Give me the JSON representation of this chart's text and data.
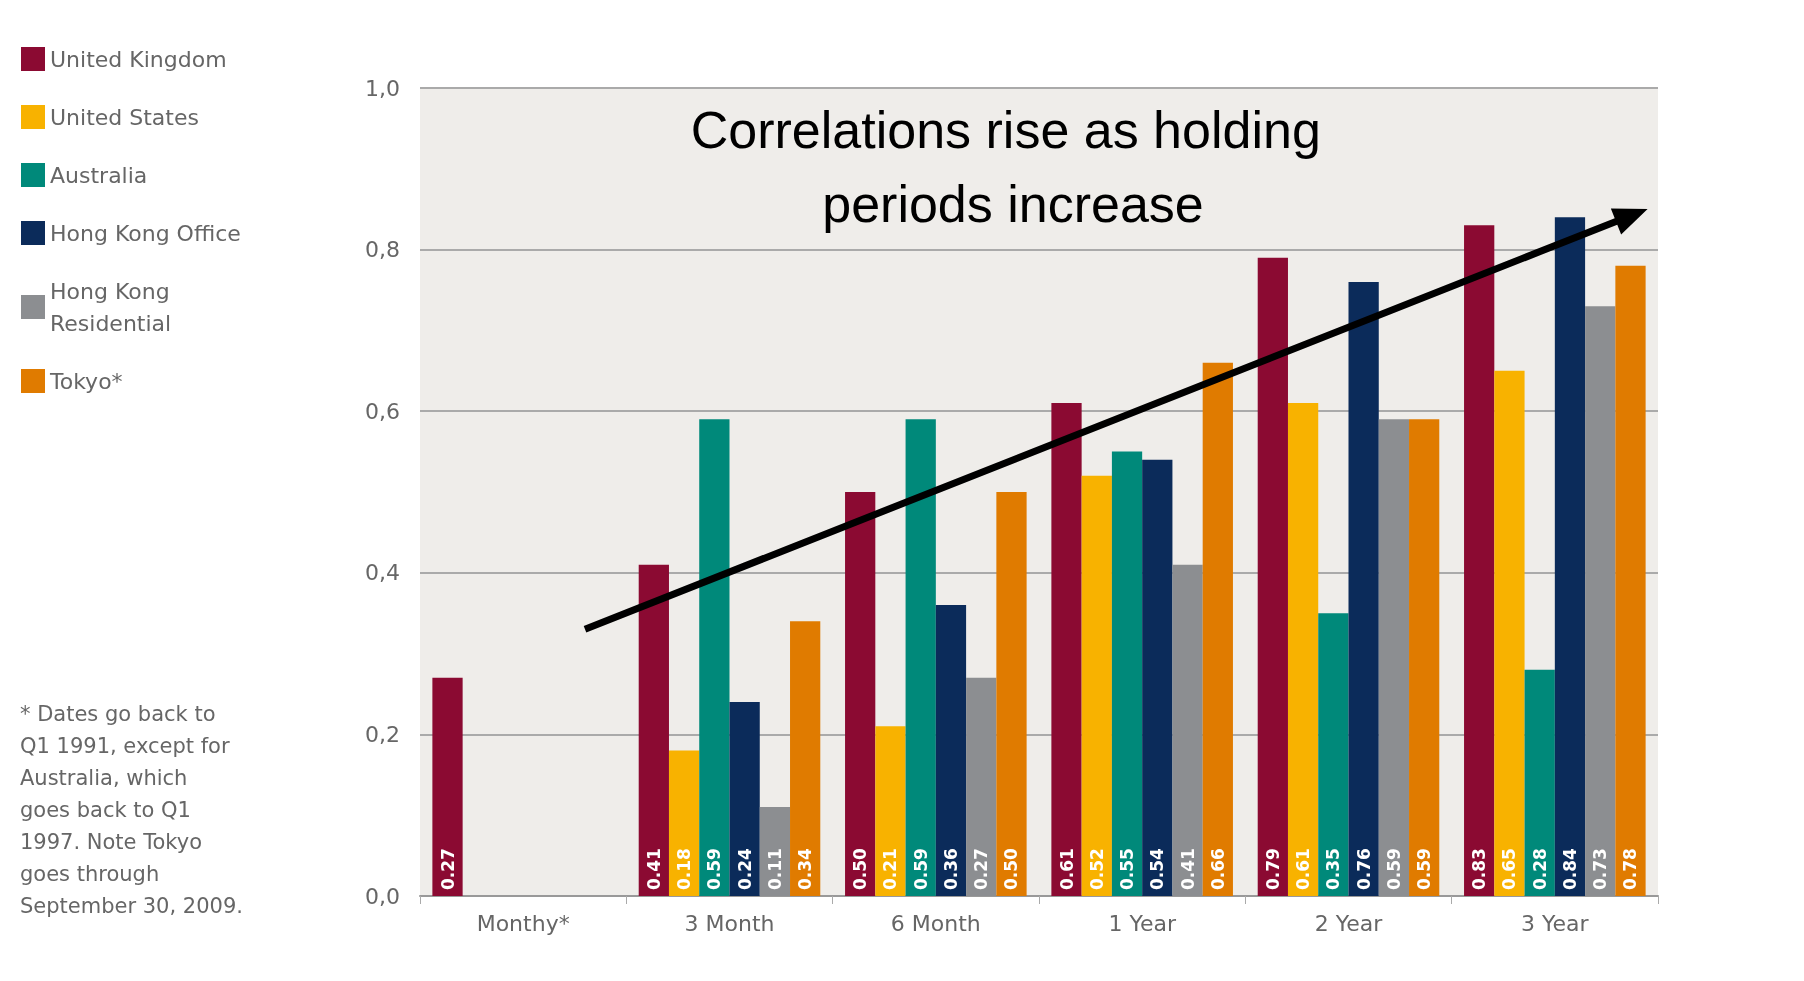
{
  "chart_data": {
    "type": "bar",
    "title": "Correlations rise as holding periods increase",
    "categories": [
      "Monthy*",
      "3 Month",
      "6 Month",
      "1 Year",
      "2 Year",
      "3 Year"
    ],
    "series": [
      {
        "name": "United Kingdom",
        "color": "#8b0a32",
        "values": [
          0.27,
          0.41,
          0.5,
          0.61,
          0.79,
          0.83
        ],
        "value_labels": [
          "0.27",
          "0.41",
          "0.50",
          "0.61",
          "0.79",
          "0.83"
        ]
      },
      {
        "name": "United States",
        "color": "#f8b200",
        "values": [
          null,
          0.18,
          0.21,
          0.52,
          0.61,
          0.65
        ],
        "value_labels": [
          null,
          "0.18",
          "0.21",
          "0.52",
          "0.61",
          "0.65"
        ]
      },
      {
        "name": "Australia",
        "color": "#00897a",
        "values": [
          null,
          0.59,
          0.59,
          0.55,
          0.35,
          0.28
        ],
        "value_labels": [
          null,
          "0.59",
          "0.59",
          "0.55",
          "0.35",
          "0.28"
        ]
      },
      {
        "name": "Hong Kong Office",
        "color": "#0b2b5a",
        "values": [
          null,
          0.24,
          0.36,
          0.54,
          0.76,
          0.84
        ],
        "value_labels": [
          null,
          "0.24",
          "0.36",
          "0.54",
          "0.76",
          "0.84"
        ]
      },
      {
        "name": "Hong Kong Residential",
        "color": "#8c8e91",
        "values": [
          null,
          0.11,
          0.27,
          0.41,
          0.59,
          0.73
        ],
        "value_labels": [
          null,
          "0.11",
          "0.27",
          "0.41",
          "0.59",
          "0.73"
        ]
      },
      {
        "name": "Tokyo*",
        "color": "#e07b00",
        "values": [
          null,
          0.34,
          0.5,
          0.66,
          0.59,
          0.78
        ],
        "value_labels": [
          null,
          "0.34",
          "0.50",
          "0.66",
          "0.59",
          "0.78"
        ]
      }
    ],
    "ylim": [
      0,
      1
    ],
    "yticks": [
      {
        "value": 0,
        "label": "0,0"
      },
      {
        "value": 0.2,
        "label": "0,2"
      },
      {
        "value": 0.4,
        "label": "0,4"
      },
      {
        "value": 0.6,
        "label": "0,6"
      },
      {
        "value": 0.8,
        "label": "0,8"
      },
      {
        "value": 1,
        "label": "1,0"
      }
    ],
    "grid": "y",
    "legend": "left",
    "annotations": [
      "* Dates go back to Q1 1991, except for Australia, which goes back to Q1 1997. Note Tokyo goes through September 30, 2009."
    ]
  }
}
